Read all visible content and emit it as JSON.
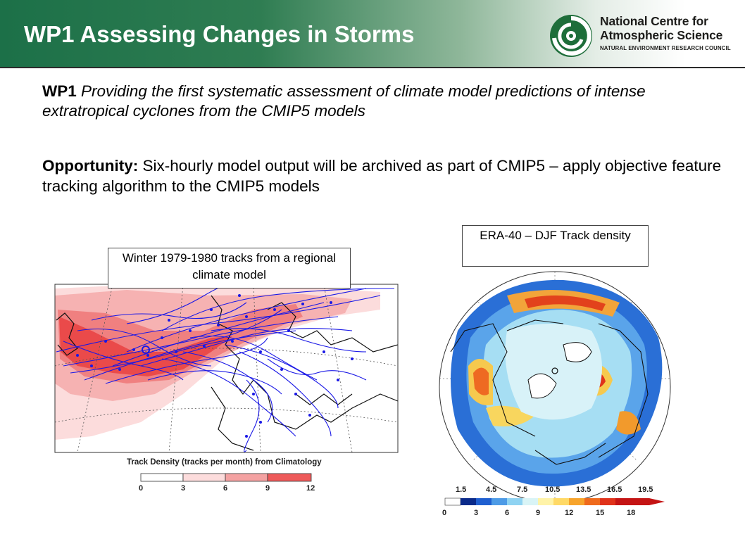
{
  "header": {
    "title": "WP1 Assessing Changes in Storms",
    "logo": {
      "line1": "National Centre for",
      "line2": "Atmospheric Science",
      "line3": "NATURAL ENVIRONMENT RESEARCH COUNCIL"
    }
  },
  "body": {
    "wp1_label": "WP1",
    "wp1_text": "Providing the first systematic assessment of climate model predictions of intense extratropical cyclones from the CMIP5 models",
    "opportunity_label": "Opportunity:",
    "opportunity_text": "Six-hourly model output will be archived as part of CMIP5 – apply objective feature tracking algorithm to the CMIP5 models"
  },
  "left_figure": {
    "caption": "Winter 1979-1980 tracks from a regional climate model",
    "colorbar_title": "Track Density (tracks per month) from Climatology",
    "colorbar_ticks": [
      "0",
      "3",
      "6",
      "9",
      "12"
    ],
    "colorbar_colors": [
      "#ffffff",
      "#fcdcdc",
      "#f4a2a2",
      "#ee5a5a",
      "#ec2a2a"
    ]
  },
  "right_figure": {
    "caption": "ERA-40 – DJF Track density",
    "colorbar_top_ticks": [
      "1.5",
      "4.5",
      "7.5",
      "10.5",
      "13.5",
      "16.5",
      "19.5"
    ],
    "colorbar_bottom_ticks": [
      "0",
      "3",
      "6",
      "9",
      "12",
      "15",
      "18"
    ],
    "colorbar_colors": [
      "#ffffff",
      "#0a2a8a",
      "#1f5fd0",
      "#4d9be6",
      "#8fd3f2",
      "#d9f4f6",
      "#fff3a8",
      "#ffd966",
      "#f7a42c",
      "#ef6a1c",
      "#e0321a",
      "#c41414"
    ]
  },
  "colors": {
    "header_green": "#1c7048",
    "track_blue": "#1a18e6",
    "logo_green": "#1e6e3a"
  }
}
